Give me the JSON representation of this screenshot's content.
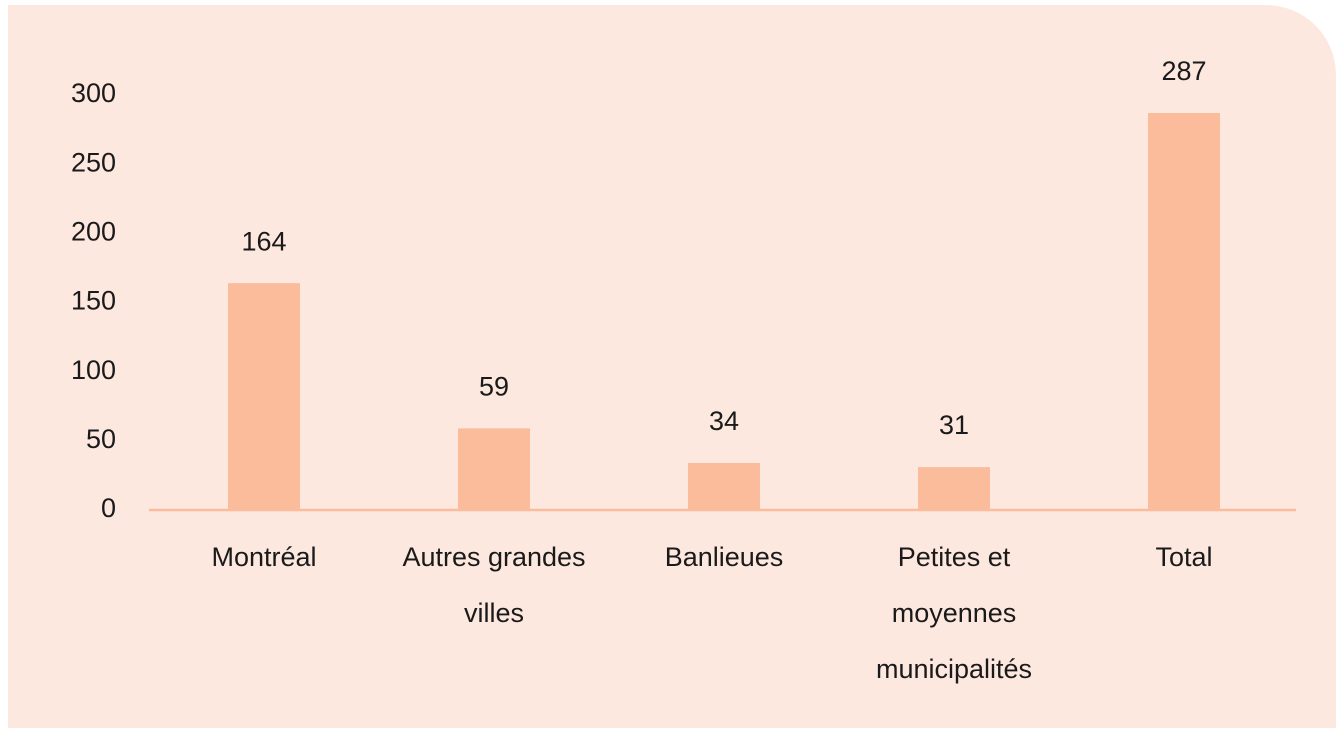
{
  "chart_data": {
    "type": "bar",
    "categories": [
      "Montréal",
      "Autres grandes villes",
      "Banlieues",
      "Petites et moyennes municipalités",
      "Total"
    ],
    "values": [
      164,
      59,
      34,
      31,
      287
    ],
    "color": "#fbbc9c",
    "ylim": [
      0,
      300
    ],
    "yticks": [
      0,
      50,
      100,
      150,
      200,
      250,
      300
    ],
    "grid": false
  }
}
